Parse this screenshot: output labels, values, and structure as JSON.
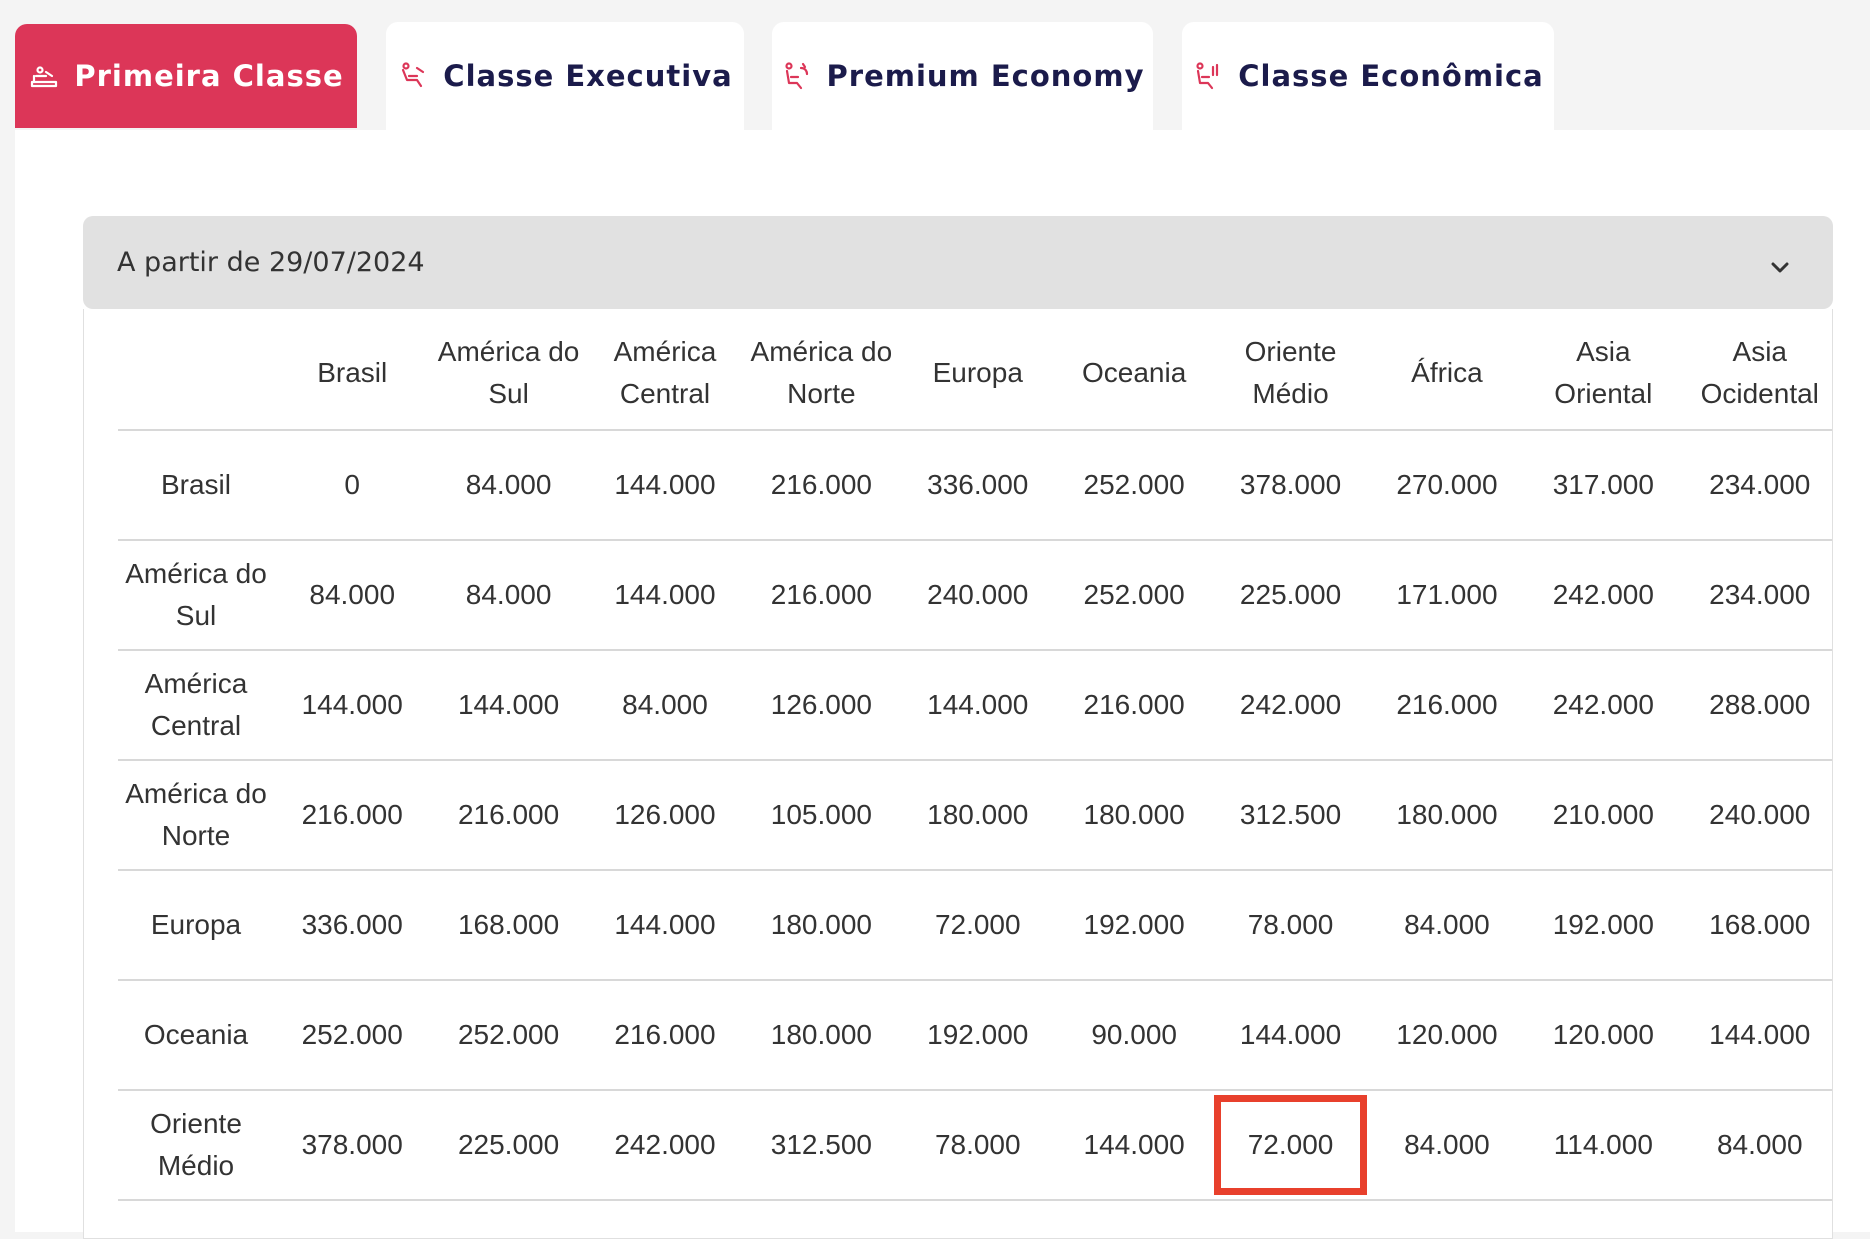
{
  "tabs": [
    {
      "label": "Primeira Classe",
      "icon": "seat-flat-icon",
      "active": true
    },
    {
      "label": "Classe Executiva",
      "icon": "seat-recline-icon",
      "active": false
    },
    {
      "label": "Premium Economy",
      "icon": "seat-premium-icon",
      "active": false
    },
    {
      "label": "Classe Econômica",
      "icon": "seat-economy-icon",
      "active": false
    }
  ],
  "accordion": {
    "title": "A partir de 29/07/2024"
  },
  "colors": {
    "active_tab": "#dc3658",
    "tab_text": "#1b1b4b",
    "highlight": "#e8402c"
  },
  "table": {
    "columns": [
      "",
      "Brasil",
      "América do Sul",
      "América Central",
      "América do Norte",
      "Europa",
      "Oceania",
      "Oriente Médio",
      "África",
      "Asia Oriental",
      "Asia Ocidental"
    ],
    "rows": [
      {
        "label": "Brasil",
        "values": [
          "0",
          "84.000",
          "144.000",
          "216.000",
          "336.000",
          "252.000",
          "378.000",
          "270.000",
          "317.000",
          "234.000"
        ]
      },
      {
        "label": "América do Sul",
        "values": [
          "84.000",
          "84.000",
          "144.000",
          "216.000",
          "240.000",
          "252.000",
          "225.000",
          "171.000",
          "242.000",
          "234.000"
        ]
      },
      {
        "label": "América Central",
        "values": [
          "144.000",
          "144.000",
          "84.000",
          "126.000",
          "144.000",
          "216.000",
          "242.000",
          "216.000",
          "242.000",
          "288.000"
        ]
      },
      {
        "label": "América do Norte",
        "values": [
          "216.000",
          "216.000",
          "126.000",
          "105.000",
          "180.000",
          "180.000",
          "312.500",
          "180.000",
          "210.000",
          "240.000"
        ]
      },
      {
        "label": "Europa",
        "values": [
          "336.000",
          "168.000",
          "144.000",
          "180.000",
          "72.000",
          "192.000",
          "78.000",
          "84.000",
          "192.000",
          "168.000"
        ]
      },
      {
        "label": "Oceania",
        "values": [
          "252.000",
          "252.000",
          "216.000",
          "180.000",
          "192.000",
          "90.000",
          "144.000",
          "120.000",
          "120.000",
          "144.000"
        ]
      },
      {
        "label": "Oriente Médio",
        "values": [
          "378.000",
          "225.000",
          "242.000",
          "312.500",
          "78.000",
          "144.000",
          "72.000",
          "84.000",
          "114.000",
          "84.000"
        ]
      }
    ],
    "highlighted_cell": {
      "row": "Oriente Médio",
      "column": "Oriente Médio"
    }
  }
}
